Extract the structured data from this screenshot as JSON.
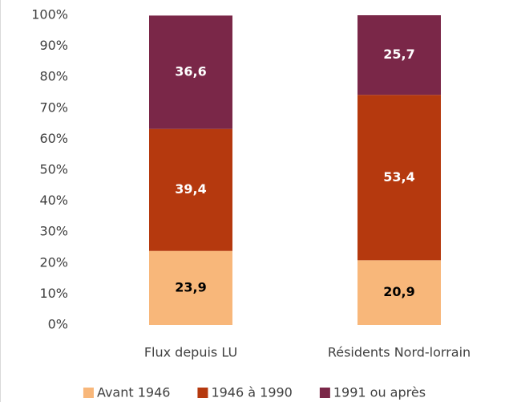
{
  "chart_data": {
    "type": "stacked_bar",
    "categories": [
      "Flux depuis LU",
      "Résidents Nord-lorrain"
    ],
    "series": [
      {
        "name": "Avant 1946",
        "color": "#F8B77A",
        "values": [
          23.9,
          20.9
        ],
        "value_labels": [
          "23,9",
          "20,9"
        ]
      },
      {
        "name": "1946 à 1990",
        "color": "#B5390E",
        "values": [
          39.4,
          53.4
        ],
        "value_labels": [
          "39,4",
          "53,4"
        ]
      },
      {
        "name": "1991 ou après",
        "color": "#7A2748",
        "values": [
          36.6,
          25.7
        ],
        "value_labels": [
          "36,6",
          "25,7"
        ]
      }
    ],
    "ylim": [
      0,
      100
    ],
    "yticks": [
      {
        "value": 0,
        "label": "0%"
      },
      {
        "value": 10,
        "label": "10%"
      },
      {
        "value": 20,
        "label": "20%"
      },
      {
        "value": 30,
        "label": "30%"
      },
      {
        "value": 40,
        "label": "40%"
      },
      {
        "value": 50,
        "label": "50%"
      },
      {
        "value": 60,
        "label": "60%"
      },
      {
        "value": 70,
        "label": "70%"
      },
      {
        "value": 80,
        "label": "80%"
      },
      {
        "value": 90,
        "label": "90%"
      },
      {
        "value": 100,
        "label": "100%"
      }
    ],
    "grid": false,
    "legend": "bottom"
  }
}
